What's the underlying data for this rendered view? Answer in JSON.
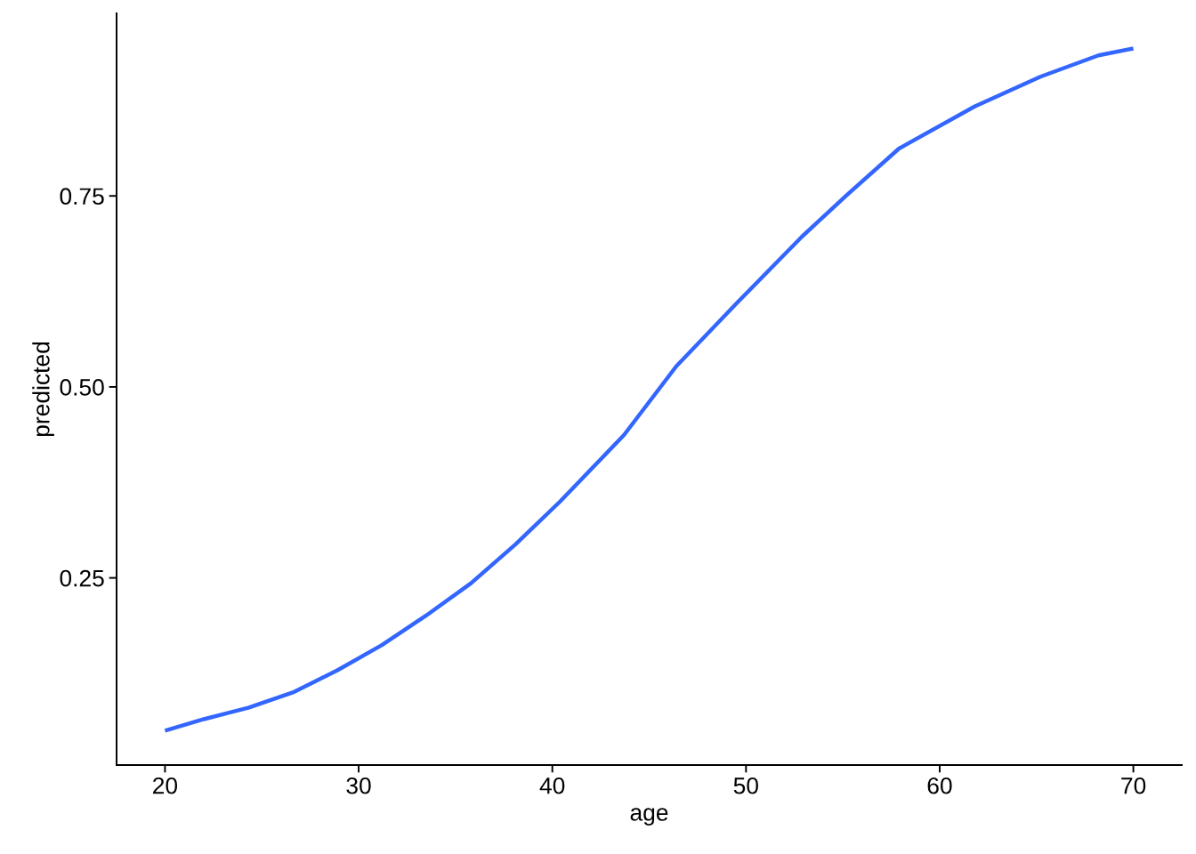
{
  "chart_data": {
    "type": "line",
    "xlabel": "age",
    "ylabel": "predicted",
    "x": [
      20,
      22,
      24.3,
      26.6,
      28.9,
      31.2,
      33.5,
      35.8,
      38.1,
      40.4,
      43.7,
      46.4,
      49.5,
      52.9,
      55.2,
      57.9,
      61.8,
      65.2,
      68.2,
      70
    ],
    "series": [
      {
        "color": "#3366ff",
        "values": [
          0.05,
          0.065,
          0.08,
          0.1,
          0.129,
          0.162,
          0.201,
          0.243,
          0.294,
          0.35,
          0.437,
          0.527,
          0.609,
          0.697,
          0.751,
          0.812,
          0.867,
          0.906,
          0.934,
          0.943
        ]
      }
    ],
    "xlim": [
      17.5,
      72.5
    ],
    "ylim": [
      0.005,
      0.989
    ],
    "xticks": [
      20,
      30,
      40,
      50,
      60,
      70
    ],
    "yticks": [
      {
        "value": 0.25,
        "label": "0.25"
      },
      {
        "value": 0.5,
        "label": "0.50"
      },
      {
        "value": 0.75,
        "label": "0.75"
      }
    ],
    "grid": false,
    "legend": false,
    "marker": "none",
    "line_style": "solid"
  }
}
